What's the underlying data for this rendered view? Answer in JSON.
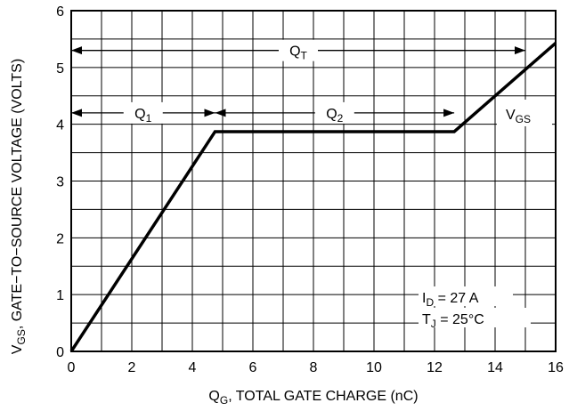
{
  "chart_data": {
    "type": "line",
    "xlabel_main": "Q",
    "xlabel_sub": "G",
    "xlabel_rest": ", TOTAL GATE CHARGE (nC)",
    "ylabel_main": "V",
    "ylabel_sub": "GS",
    "ylabel_rest": ", GATE−TO−SOURCE VOLTAGE (VOLTS)",
    "xlim": [
      0,
      16
    ],
    "ylim": [
      0,
      6
    ],
    "xticks": [
      "0",
      "2",
      "4",
      "6",
      "8",
      "10",
      "12",
      "14",
      "16"
    ],
    "yticks": [
      "0",
      "1",
      "2",
      "3",
      "4",
      "5",
      "6"
    ],
    "grid": true,
    "series": [
      {
        "name": "VGS",
        "x": [
          0,
          4.75,
          12.65,
          16
        ],
        "y": [
          0,
          3.87,
          3.87,
          5.43
        ]
      }
    ],
    "annotations": {
      "qt": {
        "main": "Q",
        "sub": "T",
        "x_from": 0,
        "x_to": 15.0,
        "y": 5.3
      },
      "q1": {
        "main": "Q",
        "sub": "1",
        "x_from": 0,
        "x_to": 4.75,
        "y": 4.2
      },
      "q2": {
        "main": "Q",
        "sub": "2",
        "x_from": 4.75,
        "x_to": 12.65,
        "y": 4.2
      },
      "vgs": {
        "main": "V",
        "sub": "GS"
      },
      "id": {
        "main": "I",
        "sub": "D",
        "rest": " = 27 A"
      },
      "tj": {
        "main": "T",
        "sub": "J",
        "rest": " = 25°C"
      }
    }
  }
}
